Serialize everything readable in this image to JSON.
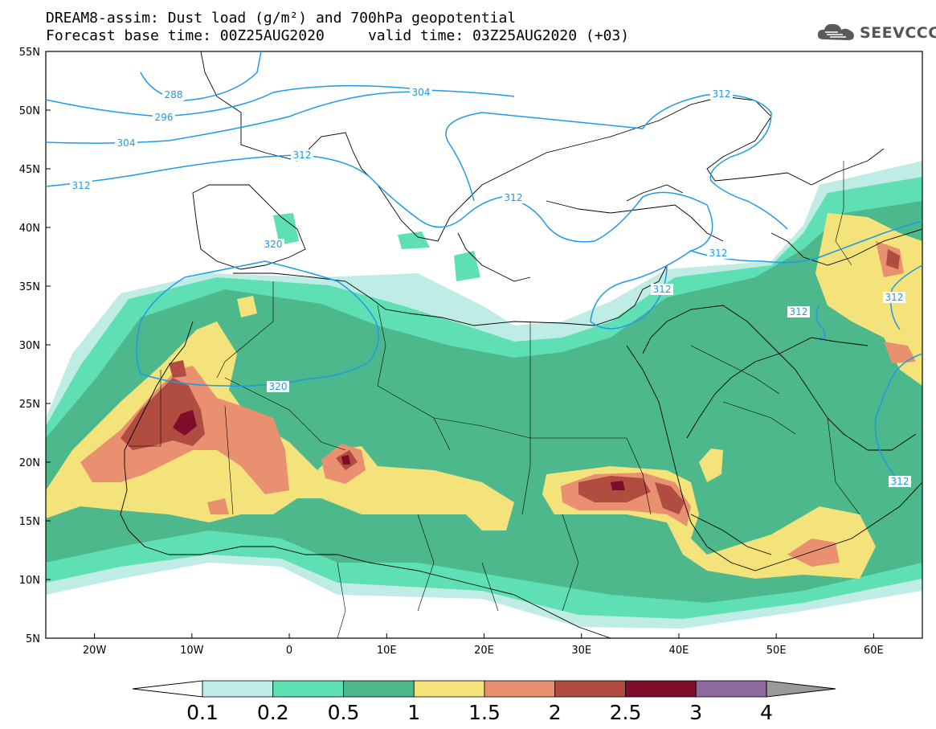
{
  "header": {
    "title_line1": "DREAM8-assim: Dust load (g/m²) and 700hPa geopotential",
    "title_line2": "Forecast base time: 00Z25AUG2020     valid time: 03Z25AUG2020 (+03)",
    "logo_text": "SEEVCCC"
  },
  "map": {
    "lat_labels": [
      "55N",
      "50N",
      "45N",
      "40N",
      "35N",
      "30N",
      "25N",
      "20N",
      "15N",
      "10N",
      "5N"
    ],
    "lon_labels": [
      "20W",
      "10W",
      "0",
      "10E",
      "20E",
      "30E",
      "40E",
      "50E",
      "60E"
    ],
    "lon_range": [
      -25,
      65
    ],
    "lat_range": [
      5,
      55
    ],
    "contour_labels": [
      "288",
      "296",
      "304",
      "312",
      "320"
    ],
    "line_color": "#1e9be6"
  },
  "colorbar": {
    "ticks": [
      "0.1",
      "0.2",
      "0.5",
      "1",
      "1.5",
      "2",
      "2.5",
      "3",
      "4"
    ],
    "colors": [
      "#bfece4",
      "#5fe0b4",
      "#4db88c",
      "#f4e27a",
      "#e89070",
      "#b04c40",
      "#800c2c",
      "#8e6aa0"
    ],
    "over_color": "#9a9a9a",
    "under_color": "#ffffff"
  }
}
